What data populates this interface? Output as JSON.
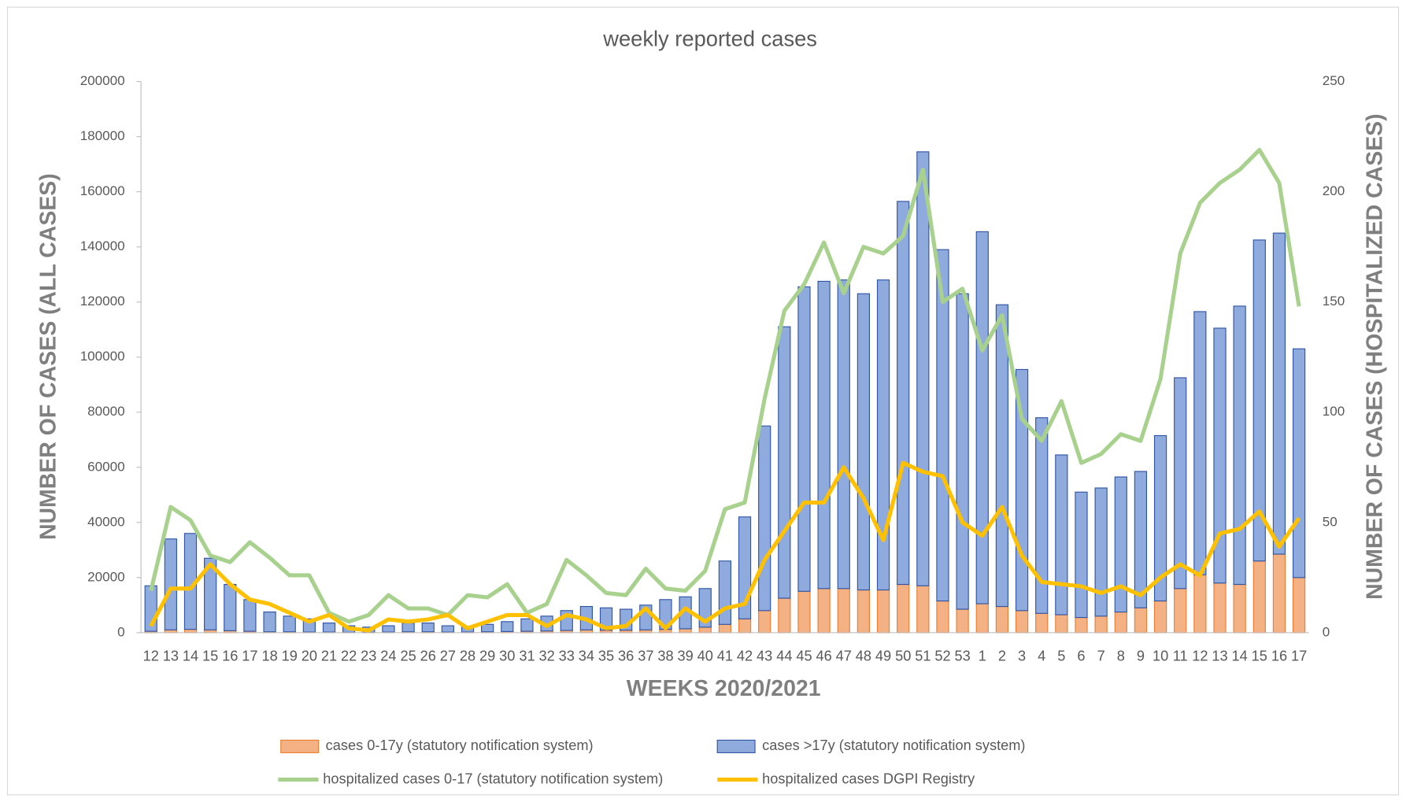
{
  "chart_data": {
    "type": "bar",
    "title": "weekly reported cases",
    "x_label": "WEEKS 2020/2021",
    "y_label": "NUMBER OF CASES (ALL CASES)",
    "y2_label": "NUMBER OF CASES (HOSPITALIZED CASES)",
    "categories": [
      "12",
      "13",
      "14",
      "15",
      "16",
      "17",
      "18",
      "19",
      "20",
      "21",
      "22",
      "23",
      "24",
      "25",
      "26",
      "27",
      "28",
      "29",
      "30",
      "31",
      "32",
      "33",
      "34",
      "35",
      "36",
      "37",
      "38",
      "39",
      "40",
      "41",
      "42",
      "43",
      "44",
      "45",
      "46",
      "47",
      "48",
      "49",
      "50",
      "51",
      "52",
      "53",
      "1",
      "2",
      "3",
      "4",
      "5",
      "6",
      "7",
      "8",
      "9",
      "10",
      "11",
      "12",
      "13",
      "14",
      "15",
      "16",
      "17"
    ],
    "ylim": [
      0,
      200000
    ],
    "yticks": [
      0,
      20000,
      40000,
      60000,
      80000,
      100000,
      120000,
      140000,
      160000,
      180000,
      200000
    ],
    "y2lim": [
      0,
      250
    ],
    "y2ticks": [
      0,
      50,
      100,
      150,
      200,
      250
    ],
    "stacked": true,
    "series": [
      {
        "name": "cases 0-17y (statutory notification system)",
        "type": "bar",
        "color": "#f4b183",
        "stroke": "#ed7d31",
        "values": [
          500,
          1000,
          1200,
          1000,
          700,
          500,
          300,
          300,
          200,
          200,
          100,
          100,
          200,
          300,
          300,
          200,
          200,
          300,
          400,
          500,
          600,
          800,
          1000,
          900,
          900,
          1000,
          1200,
          1400,
          2000,
          3000,
          5000,
          8000,
          12500,
          15000,
          16000,
          16000,
          15500,
          15500,
          17500,
          17000,
          11500,
          8500,
          10500,
          9500,
          8000,
          7000,
          6500,
          5500,
          6000,
          7500,
          9000,
          11500,
          16000,
          21000,
          18000,
          17500,
          26000,
          28500,
          20000
        ]
      },
      {
        "name": "cases >17y (statutory notification system)",
        "type": "bar",
        "color": "#8faadc",
        "stroke": "#2f55a4",
        "values": [
          16500,
          33000,
          34800,
          26000,
          16800,
          11500,
          7200,
          5700,
          4800,
          3300,
          2400,
          1900,
          2300,
          3200,
          3200,
          2300,
          1800,
          2700,
          3600,
          4500,
          5400,
          7200,
          8500,
          8100,
          7600,
          9000,
          10800,
          11600,
          14000,
          23000,
          37000,
          67000,
          98500,
          110500,
          111500,
          112000,
          107500,
          112500,
          139000,
          157500,
          127500,
          114500,
          135000,
          109500,
          87500,
          71000,
          58000,
          45500,
          46500,
          49000,
          49500,
          60000,
          76500,
          95500,
          92500,
          101000,
          116500,
          116500,
          83000
        ]
      },
      {
        "name": "hospitalized cases 0-17 (statutory notification system)",
        "type": "line",
        "axis": "y2",
        "color": "#a9d18e",
        "values": [
          19,
          57,
          51,
          35,
          32,
          41,
          34,
          26,
          26,
          9,
          5,
          8,
          17,
          11,
          11,
          8,
          17,
          16,
          22,
          9,
          13,
          33,
          26,
          18,
          17,
          29,
          20,
          19,
          28,
          56,
          59,
          106,
          146,
          158,
          177,
          154,
          175,
          172,
          180,
          210,
          150,
          156,
          128,
          144,
          97,
          87,
          105,
          77,
          81,
          90,
          87,
          115,
          172,
          195,
          204,
          210,
          219,
          204,
          148
        ]
      },
      {
        "name": "hospitalized cases DGPI Registry",
        "type": "line",
        "axis": "y2",
        "color": "#ffc000",
        "values": [
          3,
          20,
          20,
          31,
          22,
          15,
          13,
          9,
          5,
          8,
          2,
          1,
          6,
          5,
          6,
          8,
          2,
          5,
          8,
          8,
          3,
          8,
          6,
          2,
          3,
          11,
          2,
          11,
          5,
          11,
          13,
          33,
          46,
          59,
          59,
          75,
          61,
          42,
          77,
          73,
          71,
          50,
          44,
          57,
          35,
          23,
          22,
          21,
          18,
          21,
          17,
          25,
          31,
          26,
          45,
          47,
          55,
          39,
          52
        ]
      }
    ]
  }
}
